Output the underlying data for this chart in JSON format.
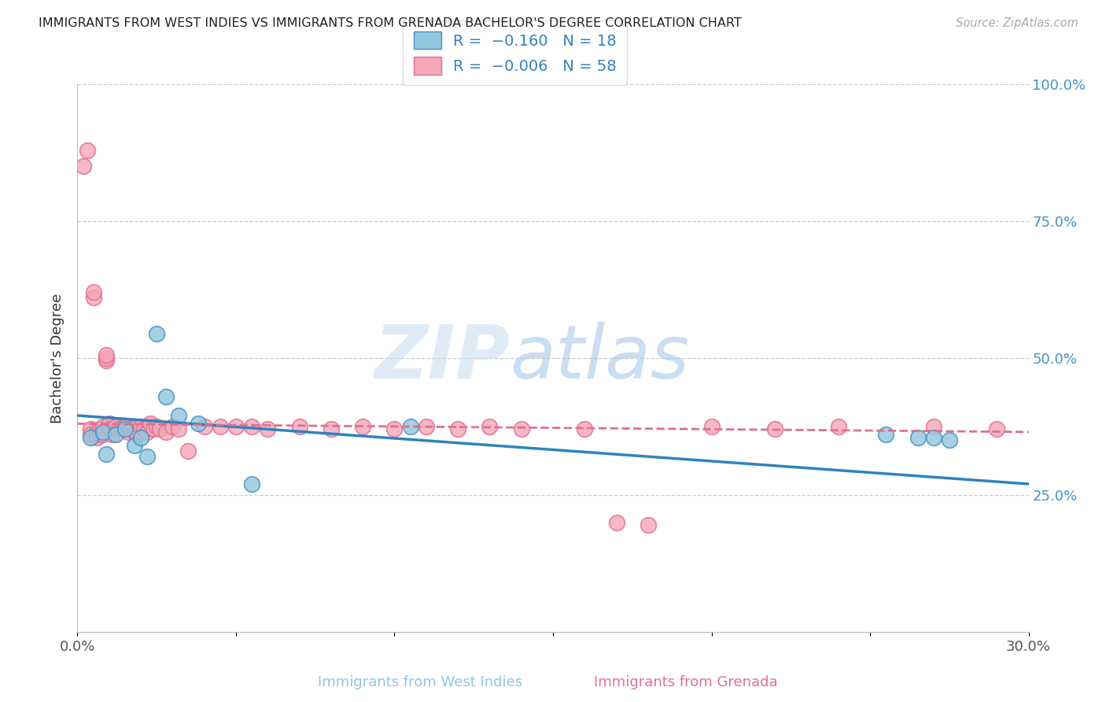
{
  "title": "IMMIGRANTS FROM WEST INDIES VS IMMIGRANTS FROM GRENADA BACHELOR'S DEGREE CORRELATION CHART",
  "source": "Source: ZipAtlas.com",
  "ylabel": "Bachelor's Degree",
  "right_yticks": [
    25.0,
    50.0,
    75.0,
    100.0
  ],
  "xlim": [
    0.0,
    0.3
  ],
  "ylim": [
    0.0,
    1.0
  ],
  "blue_color": "#92c5de",
  "pink_color": "#f4a6b8",
  "blue_edge": "#4393c3",
  "pink_edge": "#e07090",
  "trend_blue": "#3182bd",
  "trend_pink": "#e07090",
  "blue_x": [
    0.004,
    0.008,
    0.009,
    0.012,
    0.015,
    0.018,
    0.02,
    0.022,
    0.025,
    0.028,
    0.032,
    0.038,
    0.055,
    0.105,
    0.255,
    0.265,
    0.27,
    0.275
  ],
  "blue_y": [
    0.355,
    0.365,
    0.325,
    0.36,
    0.37,
    0.34,
    0.355,
    0.32,
    0.545,
    0.43,
    0.395,
    0.38,
    0.27,
    0.375,
    0.36,
    0.355,
    0.355,
    0.35
  ],
  "pink_x": [
    0.002,
    0.003,
    0.004,
    0.004,
    0.005,
    0.005,
    0.006,
    0.006,
    0.007,
    0.007,
    0.008,
    0.008,
    0.009,
    0.009,
    0.009,
    0.01,
    0.01,
    0.011,
    0.012,
    0.013,
    0.014,
    0.015,
    0.016,
    0.017,
    0.018,
    0.019,
    0.02,
    0.021,
    0.022,
    0.023,
    0.024,
    0.025,
    0.026,
    0.028,
    0.03,
    0.032,
    0.035,
    0.04,
    0.045,
    0.05,
    0.055,
    0.06,
    0.07,
    0.08,
    0.09,
    0.1,
    0.11,
    0.12,
    0.13,
    0.14,
    0.16,
    0.17,
    0.18,
    0.2,
    0.22,
    0.24,
    0.27,
    0.29
  ],
  "pink_y": [
    0.85,
    0.88,
    0.37,
    0.36,
    0.61,
    0.62,
    0.365,
    0.355,
    0.37,
    0.36,
    0.375,
    0.36,
    0.495,
    0.5,
    0.505,
    0.38,
    0.37,
    0.36,
    0.375,
    0.37,
    0.37,
    0.375,
    0.365,
    0.37,
    0.365,
    0.36,
    0.375,
    0.37,
    0.365,
    0.38,
    0.37,
    0.375,
    0.37,
    0.365,
    0.375,
    0.37,
    0.33,
    0.375,
    0.375,
    0.375,
    0.375,
    0.37,
    0.375,
    0.37,
    0.375,
    0.37,
    0.375,
    0.37,
    0.375,
    0.37,
    0.37,
    0.2,
    0.195,
    0.375,
    0.37,
    0.375,
    0.375,
    0.37
  ],
  "watermark_zip": "ZIP",
  "watermark_atlas": "atlas",
  "background_color": "#ffffff",
  "grid_color": "#cccccc",
  "blue_trend_x": [
    0.0,
    0.3
  ],
  "blue_trend_y": [
    0.395,
    0.27
  ],
  "pink_trend_x": [
    0.0,
    0.3
  ],
  "pink_trend_y": [
    0.38,
    0.365
  ]
}
